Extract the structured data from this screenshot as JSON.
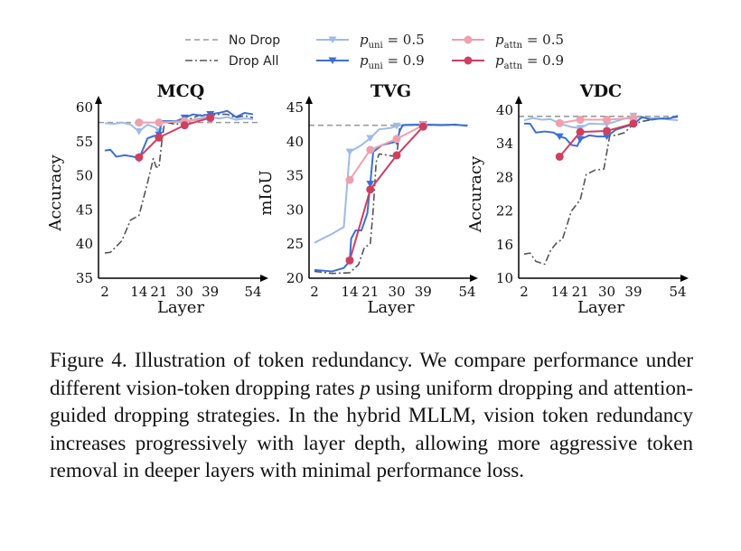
{
  "legend": [
    {
      "id": "no_drop",
      "label": "No Drop",
      "color": "#9a9a9a",
      "style": "dashed"
    },
    {
      "id": "drop_all",
      "label": "Drop All",
      "color": "#555555",
      "style": "dashdot"
    },
    {
      "id": "uni_05",
      "var": "p",
      "sub": "uni",
      "value": "= 0.5",
      "color": "#9dbbea",
      "marker": "triangle-down"
    },
    {
      "id": "uni_09",
      "var": "p",
      "sub": "uni",
      "value": "= 0.9",
      "color": "#3b6fd6",
      "marker": "triangle-down"
    },
    {
      "id": "attn_05",
      "var": "p",
      "sub": "attn",
      "value": "= 0.5",
      "color": "#efa0ad",
      "marker": "circle"
    },
    {
      "id": "attn_09",
      "var": "p",
      "sub": "attn",
      "value": "= 0.9",
      "color": "#cf3f5f",
      "marker": "circle"
    }
  ],
  "chart_data": [
    {
      "type": "line",
      "title": "MCQ",
      "xlabel": "Layer",
      "ylabel": "Accuracy",
      "xlim": [
        2,
        54
      ],
      "ylim": [
        35,
        60
      ],
      "xticks": [
        2,
        14,
        21,
        30,
        39,
        54
      ],
      "yticks": [
        35,
        40,
        45,
        50,
        55,
        60
      ],
      "series": [
        {
          "name": "No Drop",
          "x": [
            2,
            54
          ],
          "y": [
            57.8,
            57.8
          ]
        },
        {
          "name": "Drop All",
          "x": [
            2,
            4,
            8,
            11,
            14,
            17,
            19,
            20,
            21,
            22,
            23,
            24,
            27,
            30,
            33,
            36,
            39,
            42,
            45,
            48,
            51,
            54
          ],
          "y": [
            38.7,
            38.8,
            40.5,
            43.5,
            44.2,
            49,
            52.5,
            51.3,
            51.2,
            55,
            58,
            57.8,
            57.5,
            58,
            58.5,
            59,
            58.8,
            59,
            59,
            58.5,
            58.8,
            58.5
          ]
        },
        {
          "name": "p_uni = 0.5",
          "x": [
            2,
            5,
            8,
            11,
            14,
            17,
            20,
            21,
            22,
            25,
            30,
            33,
            36,
            39,
            42,
            45,
            48,
            51,
            54
          ],
          "y": [
            57.7,
            57.6,
            57.8,
            57.5,
            56.5,
            57.5,
            57,
            56.5,
            58,
            58,
            57.8,
            58.2,
            58.5,
            58.6,
            58.4,
            58.6,
            58.2,
            58.4,
            58.3
          ],
          "markers": [
            14,
            21,
            30,
            39
          ]
        },
        {
          "name": "p_uni = 0.9",
          "x": [
            2,
            4,
            6,
            9,
            12,
            14,
            17,
            19,
            21,
            22,
            27,
            30,
            33,
            36,
            39,
            42,
            45,
            48,
            51,
            54
          ],
          "y": [
            53.7,
            53.8,
            52.8,
            53,
            52.8,
            52.5,
            55.5,
            55.8,
            56,
            58,
            58,
            58.5,
            59,
            58.8,
            59,
            59.2,
            59.5,
            58.6,
            59.2,
            59
          ],
          "markers": [
            14,
            21,
            30,
            39
          ]
        },
        {
          "name": "p_attn = 0.5",
          "x": [
            14,
            21,
            30,
            39
          ],
          "y": [
            57.8,
            57.8,
            58,
            58.4
          ]
        },
        {
          "name": "p_attn = 0.9",
          "x": [
            14,
            21,
            30,
            39
          ],
          "y": [
            52.7,
            55.6,
            57.4,
            58.5
          ]
        }
      ]
    },
    {
      "type": "line",
      "title": "TVG",
      "xlabel": "Layer",
      "ylabel": "mIoU",
      "xlim": [
        2,
        54
      ],
      "ylim": [
        20,
        45
      ],
      "xticks": [
        2,
        14,
        21,
        30,
        39,
        54
      ],
      "yticks": [
        20,
        25,
        30,
        35,
        40,
        45
      ],
      "series": [
        {
          "name": "No Drop",
          "x": [
            2,
            54
          ],
          "y": [
            42.4,
            42.4
          ]
        },
        {
          "name": "Drop All",
          "x": [
            2,
            8,
            14,
            17,
            19,
            21,
            22,
            23,
            24,
            27,
            30,
            31,
            33,
            39,
            45,
            54
          ],
          "y": [
            21,
            20.7,
            20.8,
            22,
            24.5,
            25,
            30,
            37,
            38.2,
            38,
            37.8,
            42,
            42.5,
            42.4,
            42.5,
            42.4
          ]
        },
        {
          "name": "p_uni = 0.5",
          "x": [
            2,
            8,
            12,
            14,
            18,
            21,
            24,
            28,
            30,
            33,
            39,
            45,
            54
          ],
          "y": [
            25.2,
            26.5,
            27.5,
            38.5,
            39.5,
            40.5,
            41.8,
            42,
            42.3,
            42.5,
            42.5,
            42.5,
            42.4
          ],
          "markers": [
            14,
            21,
            30,
            39
          ]
        },
        {
          "name": "p_uni = 0.9",
          "x": [
            2,
            8,
            12,
            14,
            14.5,
            16,
            18,
            20,
            21,
            22,
            25,
            30,
            31,
            32,
            39,
            45,
            50,
            54
          ],
          "y": [
            21.2,
            21,
            21.5,
            22.5,
            25.8,
            27,
            27,
            29.5,
            33.8,
            38.5,
            39.5,
            40,
            41.5,
            42.4,
            42.5,
            42.4,
            42.5,
            42.3
          ],
          "markers": [
            14,
            21,
            30,
            39
          ]
        },
        {
          "name": "p_attn = 0.5",
          "x": [
            14,
            21,
            30,
            39
          ],
          "y": [
            34.4,
            38.8,
            40.4,
            42.4
          ]
        },
        {
          "name": "p_attn = 0.9",
          "x": [
            14,
            21,
            30,
            39
          ],
          "y": [
            22.6,
            33,
            38,
            42.2
          ]
        }
      ]
    },
    {
      "type": "line",
      "title": "VDC",
      "xlabel": "Layer",
      "ylabel": "Accuracy",
      "xlim": [
        2,
        54
      ],
      "ylim": [
        10,
        40
      ],
      "xticks": [
        2,
        14,
        21,
        30,
        39,
        54
      ],
      "yticks": [
        10,
        16,
        22,
        28,
        34,
        40
      ],
      "series": [
        {
          "name": "No Drop",
          "x": [
            2,
            54
          ],
          "y": [
            38.9,
            38.9
          ]
        },
        {
          "name": "Drop All",
          "x": [
            2,
            4,
            6,
            9,
            11,
            13,
            15,
            18,
            21,
            23,
            26,
            29,
            31,
            33,
            36,
            39,
            42,
            45,
            48,
            51,
            54
          ],
          "y": [
            14.3,
            14.5,
            13,
            12.5,
            15,
            16.3,
            17,
            22,
            24,
            28.5,
            29.3,
            29.5,
            35.5,
            35.5,
            36,
            37.5,
            38,
            38.3,
            38.5,
            38.6,
            38.8
          ]
        },
        {
          "name": "p_uni = 0.5",
          "x": [
            2,
            5,
            8,
            11,
            14,
            18,
            21,
            24,
            30,
            33,
            39,
            42,
            48,
            54
          ],
          "y": [
            38.2,
            38.6,
            38.3,
            38.4,
            37.6,
            37,
            36.8,
            37.6,
            37.5,
            38,
            39,
            38.6,
            38.5,
            38.2
          ],
          "markers": [
            14,
            21,
            30,
            39
          ]
        },
        {
          "name": "p_uni = 0.9",
          "x": [
            2,
            4,
            6,
            9,
            12,
            14,
            16,
            18,
            20,
            21,
            24,
            27,
            30,
            33,
            36,
            39,
            42,
            45,
            48,
            51,
            54
          ],
          "y": [
            37.6,
            37.6,
            36,
            36.2,
            36,
            35.3,
            35,
            33.8,
            33.6,
            34.8,
            35.5,
            35.3,
            35.3,
            36.5,
            37,
            37.5,
            38.8,
            38.3,
            38.5,
            38.5,
            39
          ],
          "markers": [
            14,
            21,
            30,
            39
          ]
        },
        {
          "name": "p_attn = 0.5",
          "x": [
            14,
            21,
            30,
            39
          ],
          "y": [
            37.7,
            38.3,
            38.3,
            38.6
          ]
        },
        {
          "name": "p_attn = 0.9",
          "x": [
            14,
            21,
            30,
            39
          ],
          "y": [
            31.7,
            36.1,
            36.3,
            37.6
          ]
        }
      ]
    }
  ],
  "caption": {
    "part1": "Figure 4.  Illustration of token redundancy.  We compare performance under different vision-token dropping rates ",
    "var": "p",
    "part2": " using uniform dropping and attention-guided dropping strategies. In the hybrid MLLM, vision token redundancy increases progressively with layer depth, allowing more aggressive token removal in deeper layers with minimal performance loss."
  }
}
